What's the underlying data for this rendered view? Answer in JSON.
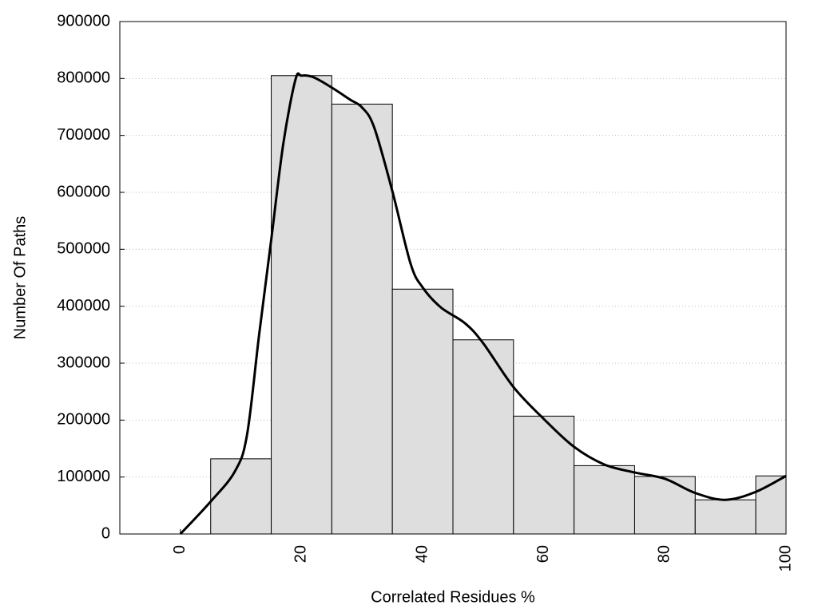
{
  "chart_data": {
    "type": "histogram",
    "xlabel": "Correlated Residues %",
    "ylabel": "Number Of Paths",
    "bins": [
      5,
      15,
      25,
      35,
      45,
      55,
      65,
      75,
      85,
      95,
      100
    ],
    "values": [
      132000,
      805000,
      755000,
      430000,
      341000,
      207000,
      120000,
      101000,
      60000,
      102000
    ],
    "color": "#dedede",
    "curve": {
      "type": "line",
      "color": "#000000",
      "x": [
        0,
        5,
        9,
        11,
        13,
        15,
        17,
        19,
        20,
        22,
        25,
        28,
        30,
        32,
        35,
        38,
        40,
        43,
        47,
        50,
        55,
        60,
        65,
        70,
        75,
        80,
        85,
        90,
        95,
        100
      ],
      "values": [
        0,
        57000,
        110000,
        174000,
        350000,
        517000,
        686000,
        798000,
        805000,
        802000,
        784000,
        763000,
        749000,
        714000,
        602000,
        475000,
        433000,
        398000,
        370000,
        335000,
        258000,
        202000,
        153000,
        122000,
        108000,
        97000,
        72000,
        60000,
        74000,
        102000
      ]
    },
    "xlim": [
      -10,
      100
    ],
    "xticks": [
      0,
      20,
      40,
      60,
      80,
      100
    ],
    "ylim": [
      0,
      900000
    ],
    "yticks": [
      0,
      100000,
      200000,
      300000,
      400000,
      500000,
      600000,
      700000,
      800000,
      900000
    ],
    "grid": true
  }
}
